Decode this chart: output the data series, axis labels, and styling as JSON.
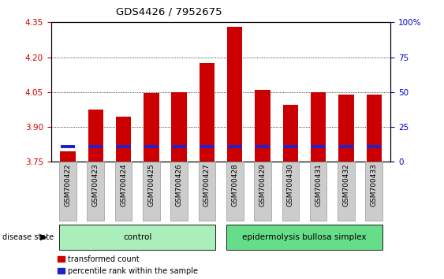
{
  "title": "GDS4426 / 7952675",
  "samples": [
    "GSM700422",
    "GSM700423",
    "GSM700424",
    "GSM700425",
    "GSM700426",
    "GSM700427",
    "GSM700428",
    "GSM700429",
    "GSM700430",
    "GSM700431",
    "GSM700432",
    "GSM700433"
  ],
  "transformed_count": [
    3.795,
    3.975,
    3.945,
    4.045,
    4.05,
    4.175,
    4.33,
    4.06,
    3.995,
    4.05,
    4.04,
    4.04
  ],
  "percentile_rank_y": [
    3.815,
    3.815,
    3.815,
    3.815,
    3.815,
    3.815,
    3.815,
    3.815,
    3.815,
    3.815,
    3.815,
    3.815
  ],
  "baseline": 3.75,
  "ylim_left": [
    3.75,
    4.35
  ],
  "ylim_right": [
    0,
    100
  ],
  "yticks_left": [
    3.75,
    3.9,
    4.05,
    4.2,
    4.35
  ],
  "yticks_right": [
    0,
    25,
    50,
    75,
    100
  ],
  "ytick_labels_right": [
    "0",
    "25",
    "50",
    "75",
    "100%"
  ],
  "bar_color": "#cc0000",
  "percentile_color": "#2222cc",
  "bar_width": 0.55,
  "group_labels": [
    "control",
    "epidermolysis bullosa simplex"
  ],
  "group_colors": [
    "#aaeebb",
    "#66dd88"
  ],
  "disease_state_label": "disease state",
  "legend_items": [
    "transformed count",
    "percentile rank within the sample"
  ],
  "legend_colors": [
    "#cc0000",
    "#2222cc"
  ],
  "tick_color_left": "#cc0000",
  "tick_color_right": "#0000cc",
  "spine_color": "#000000",
  "title_fontsize": 9.5,
  "axis_fontsize": 7.5,
  "legend_fontsize": 7,
  "label_fontsize": 6.5
}
